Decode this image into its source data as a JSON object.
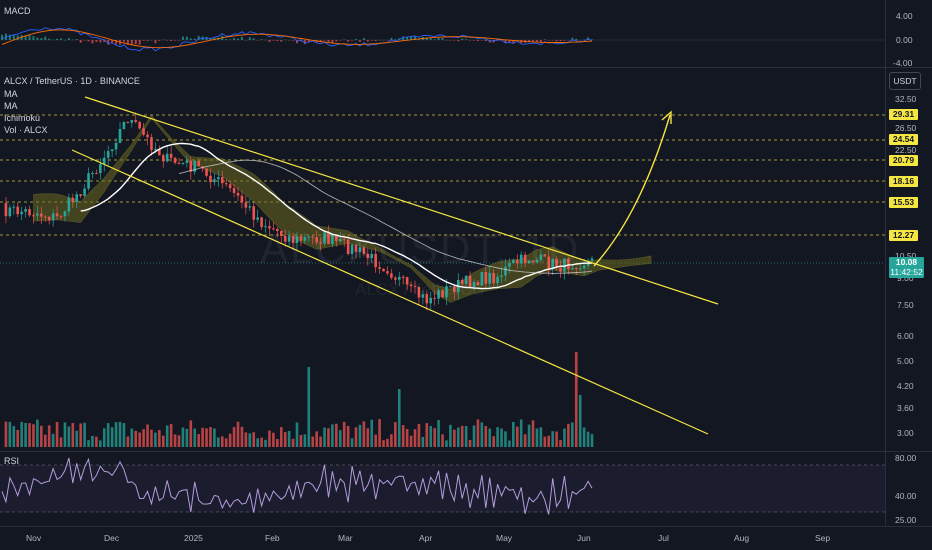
{
  "symbol_header": "ALCX / TetherUS · 1D · BINANCE",
  "watermark": {
    "symbol": "ALCXUSDT, 1D",
    "name": "ALCX / TetherUS"
  },
  "indicators": {
    "ma1": "MA",
    "ma2": "MA",
    "ichimoku": "Ichimoku",
    "volume": "Vol · ALCX"
  },
  "macd": {
    "label": "MACD",
    "ticks": [
      "4.00",
      "0.00",
      "-4.00"
    ]
  },
  "rsi": {
    "label": "RSI",
    "ticks": [
      "80.00",
      "40.00",
      "25.00"
    ]
  },
  "currency": "USDT",
  "price_axis": {
    "plain": [
      "32.50",
      "26.50",
      "22.50",
      "10.50",
      "9.00",
      "7.50",
      "6.00",
      "5.00",
      "4.20",
      "3.60",
      "3.00"
    ],
    "tags": [
      "29.31",
      "24.54",
      "20.79",
      "18.16",
      "15.53",
      "12.27"
    ],
    "current_price": "10.08",
    "countdown": "11:42:52"
  },
  "dates": [
    "Nov",
    "Dec",
    "2025",
    "Feb",
    "Mar",
    "Apr",
    "May",
    "Jun",
    "Jul",
    "Aug",
    "Sep"
  ],
  "colors": {
    "bg": "#131722",
    "up": "#26a69a",
    "down": "#ef5350",
    "trendline": "#f5e642",
    "level": "#f5e642",
    "ma_white": "#ffffff",
    "ichimoku_cloud": "#6b6a1e",
    "rsi_line": "#b39ddb",
    "current": "#26a69a"
  }
}
